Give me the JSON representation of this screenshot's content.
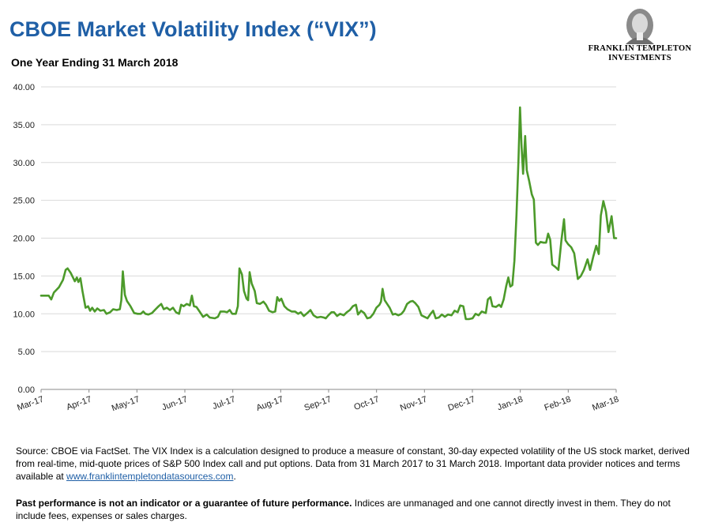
{
  "header": {
    "title": "CBOE Market Volatility Index (“VIX”)",
    "subtitle": "One Year Ending 31 March 2018"
  },
  "logo": {
    "icon": "benjamin-franklin-portrait",
    "line1": "FRANKLIN TEMPLETON",
    "line2": "INVESTMENTS"
  },
  "chart_data": {
    "type": "line",
    "title": "",
    "xlabel": "",
    "ylabel": "",
    "ylim": [
      0,
      40
    ],
    "yticks": [
      "0.00",
      "5.00",
      "10.00",
      "15.00",
      "20.00",
      "25.00",
      "30.00",
      "35.00",
      "40.00"
    ],
    "xticks": [
      "Mar-17",
      "Apr-17",
      "May-17",
      "Jun-17",
      "Jul-17",
      "Aug-17",
      "Sep-17",
      "Oct-17",
      "Nov-17",
      "Dec-17",
      "Jan-18",
      "Feb-18",
      "Mar-18"
    ],
    "grid": true,
    "legend": "none",
    "colors": {
      "line": "#4c9a2a",
      "grid": "#d9d9d9",
      "axis": "#888888"
    },
    "series": [
      {
        "values": [
          [
            0,
            12.4
          ],
          [
            1.5,
            12.4
          ],
          [
            2,
            11.9
          ],
          [
            2.5,
            12.8
          ],
          [
            3.5,
            13.5
          ],
          [
            4.3,
            14.5
          ],
          [
            4.8,
            15.8
          ],
          [
            5.2,
            16.0
          ],
          [
            5.8,
            15.4
          ],
          [
            6.3,
            14.7
          ],
          [
            6.6,
            14.3
          ],
          [
            7,
            14.8
          ],
          [
            7.3,
            14.2
          ],
          [
            7.7,
            14.7
          ],
          [
            8.1,
            13.0
          ],
          [
            8.7,
            10.8
          ],
          [
            9.2,
            11.0
          ],
          [
            9.6,
            10.4
          ],
          [
            10,
            10.8
          ],
          [
            10.5,
            10.3
          ],
          [
            11,
            10.7
          ],
          [
            11.6,
            10.4
          ],
          [
            12.3,
            10.5
          ],
          [
            12.8,
            10.0
          ],
          [
            13.5,
            10.2
          ],
          [
            14.1,
            10.6
          ],
          [
            14.8,
            10.5
          ],
          [
            15.4,
            10.6
          ],
          [
            15.7,
            11.8
          ],
          [
            16,
            15.6
          ],
          [
            16.4,
            12.5
          ],
          [
            16.8,
            11.7
          ],
          [
            17.5,
            11.0
          ],
          [
            18.2,
            10.1
          ],
          [
            18.9,
            10.0
          ],
          [
            19.5,
            10.0
          ],
          [
            20,
            10.3
          ],
          [
            20.4,
            10.0
          ],
          [
            21,
            9.9
          ],
          [
            21.7,
            10.1
          ],
          [
            22.4,
            10.6
          ],
          [
            23,
            11.0
          ],
          [
            23.5,
            11.3
          ],
          [
            24,
            10.6
          ],
          [
            24.6,
            10.8
          ],
          [
            25.2,
            10.5
          ],
          [
            25.8,
            10.8
          ],
          [
            26.4,
            10.2
          ],
          [
            27,
            10.0
          ],
          [
            27.4,
            11.2
          ],
          [
            27.9,
            11.0
          ],
          [
            28.5,
            11.3
          ],
          [
            29.1,
            11.1
          ],
          [
            29.5,
            12.4
          ],
          [
            29.9,
            11.0
          ],
          [
            30.4,
            10.9
          ],
          [
            31,
            10.3
          ],
          [
            31.7,
            9.6
          ],
          [
            32.4,
            9.9
          ],
          [
            33,
            9.5
          ],
          [
            34,
            9.4
          ],
          [
            34.6,
            9.6
          ],
          [
            35.1,
            10.3
          ],
          [
            35.8,
            10.3
          ],
          [
            36.4,
            10.2
          ],
          [
            36.9,
            10.5
          ],
          [
            37.4,
            10.0
          ],
          [
            38.1,
            10.0
          ],
          [
            38.5,
            11.0
          ],
          [
            38.8,
            16.0
          ],
          [
            39.3,
            15.2
          ],
          [
            39.7,
            13.0
          ],
          [
            40.2,
            12.0
          ],
          [
            40.5,
            11.8
          ],
          [
            40.8,
            15.5
          ],
          [
            41.2,
            14.0
          ],
          [
            41.8,
            13.0
          ],
          [
            42.2,
            11.4
          ],
          [
            42.8,
            11.3
          ],
          [
            43.5,
            11.6
          ],
          [
            44,
            11.2
          ],
          [
            44.6,
            10.4
          ],
          [
            45.3,
            10.2
          ],
          [
            45.8,
            10.3
          ],
          [
            46.2,
            12.2
          ],
          [
            46.6,
            11.7
          ],
          [
            47,
            12.0
          ],
          [
            47.6,
            11.0
          ],
          [
            48.2,
            10.6
          ],
          [
            49,
            10.3
          ],
          [
            49.7,
            10.3
          ],
          [
            50.3,
            10.0
          ],
          [
            50.8,
            10.2
          ],
          [
            51.4,
            9.7
          ],
          [
            52.1,
            10.1
          ],
          [
            52.7,
            10.5
          ],
          [
            53.3,
            9.8
          ],
          [
            54,
            9.5
          ],
          [
            54.7,
            9.6
          ],
          [
            55.3,
            9.5
          ],
          [
            55.7,
            9.4
          ],
          [
            56.2,
            9.8
          ],
          [
            56.8,
            10.2
          ],
          [
            57.3,
            10.2
          ],
          [
            57.9,
            9.7
          ],
          [
            58.5,
            10.0
          ],
          [
            59.2,
            9.8
          ],
          [
            59.8,
            10.2
          ],
          [
            60.4,
            10.5
          ],
          [
            61,
            11.0
          ],
          [
            61.6,
            11.2
          ],
          [
            62,
            9.9
          ],
          [
            62.6,
            10.4
          ],
          [
            63.2,
            10.1
          ],
          [
            63.8,
            9.4
          ],
          [
            64.4,
            9.5
          ],
          [
            65,
            10.0
          ],
          [
            65.6,
            10.8
          ],
          [
            66.2,
            11.2
          ],
          [
            66.5,
            11.6
          ],
          [
            66.8,
            13.3
          ],
          [
            67.2,
            11.8
          ],
          [
            67.7,
            11.3
          ],
          [
            68.2,
            10.8
          ],
          [
            68.8,
            9.9
          ],
          [
            69.3,
            10.0
          ],
          [
            69.9,
            9.8
          ],
          [
            70.5,
            10.0
          ],
          [
            71,
            10.4
          ],
          [
            71.6,
            11.3
          ],
          [
            72.2,
            11.6
          ],
          [
            72.7,
            11.7
          ],
          [
            73.2,
            11.4
          ],
          [
            73.8,
            10.9
          ],
          [
            74.4,
            9.8
          ],
          [
            75,
            9.6
          ],
          [
            75.6,
            9.4
          ],
          [
            76.2,
            10.0
          ],
          [
            76.7,
            10.4
          ],
          [
            77.2,
            9.4
          ],
          [
            77.8,
            9.5
          ],
          [
            78.4,
            9.9
          ],
          [
            79,
            9.6
          ],
          [
            79.6,
            9.9
          ],
          [
            80.3,
            9.8
          ],
          [
            80.9,
            10.4
          ],
          [
            81.5,
            10.2
          ],
          [
            82,
            11.1
          ],
          [
            82.6,
            11.0
          ],
          [
            83.1,
            9.3
          ],
          [
            83.7,
            9.3
          ],
          [
            84.4,
            9.4
          ],
          [
            85,
            10.0
          ],
          [
            85.6,
            9.8
          ],
          [
            86.2,
            10.3
          ],
          [
            87,
            10.1
          ],
          [
            87.4,
            11.9
          ],
          [
            87.9,
            12.2
          ],
          [
            88.3,
            11.0
          ],
          [
            89,
            10.9
          ],
          [
            89.6,
            11.2
          ],
          [
            90,
            10.9
          ],
          [
            90.5,
            11.9
          ],
          [
            91,
            13.7
          ],
          [
            91.4,
            14.8
          ],
          [
            91.8,
            13.6
          ],
          [
            92.2,
            13.8
          ],
          [
            92.6,
            17.0
          ],
          [
            93,
            23.0
          ],
          [
            93.4,
            30.5
          ],
          [
            93.7,
            37.3
          ],
          [
            94,
            32.0
          ],
          [
            94.3,
            28.5
          ],
          [
            94.7,
            33.5
          ],
          [
            95,
            29.0
          ],
          [
            95.5,
            27.5
          ],
          [
            96,
            25.8
          ],
          [
            96.4,
            25.1
          ],
          [
            96.8,
            19.4
          ],
          [
            97.2,
            19.1
          ],
          [
            97.7,
            19.5
          ],
          [
            98.3,
            19.4
          ],
          [
            98.8,
            19.4
          ],
          [
            99.2,
            20.6
          ],
          [
            99.6,
            19.8
          ],
          [
            100,
            16.5
          ],
          [
            100.6,
            16.2
          ],
          [
            101.2,
            15.8
          ],
          [
            101.8,
            19.8
          ],
          [
            102.3,
            22.5
          ],
          [
            102.6,
            19.7
          ],
          [
            103.1,
            19.2
          ],
          [
            103.7,
            18.8
          ],
          [
            104.3,
            18.0
          ],
          [
            105,
            14.6
          ],
          [
            105.6,
            15.0
          ],
          [
            106.2,
            15.8
          ],
          [
            106.9,
            17.2
          ],
          [
            107.4,
            15.8
          ],
          [
            108,
            17.5
          ],
          [
            108.6,
            19.0
          ],
          [
            109.1,
            17.9
          ],
          [
            109.5,
            23.0
          ],
          [
            110,
            24.9
          ],
          [
            110.5,
            23.5
          ],
          [
            111,
            20.8
          ],
          [
            111.6,
            22.9
          ],
          [
            112.1,
            20.0
          ],
          [
            112.5,
            20.0
          ]
        ]
      }
    ]
  },
  "footer": {
    "source_text": "Source: CBOE via FactSet. The VIX Index is a calculation designed to produce a measure of constant, 30-day expected volatility of the US stock market, derived from real-time, mid-quote prices of S&P 500 Index call and put options. Data from 31 March 2017 to 31 March 2018. Important data provider notices and terms available at ",
    "source_link": "www.franklintempletondatasources.com",
    "source_end": ".",
    "disclaimer_bold": "Past performance is not an indicator or a guarantee of future performance.",
    "disclaimer_rest": "  Indices are unmanaged and one cannot directly invest in them. They do not include fees, expenses or sales charges."
  }
}
